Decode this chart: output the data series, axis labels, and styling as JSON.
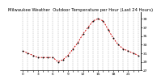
{
  "title": "Milwaukee Weather  Outdoor Temperature per Hour (Last 24 Hours)",
  "hours": [
    0,
    1,
    2,
    3,
    4,
    5,
    6,
    7,
    8,
    9,
    10,
    11,
    12,
    13,
    14,
    15,
    16,
    17,
    18,
    19,
    20,
    21,
    22,
    23
  ],
  "temps": [
    31.5,
    31.0,
    30.5,
    30.0,
    30.0,
    30.0,
    30.0,
    29.0,
    29.5,
    30.5,
    32.0,
    33.5,
    35.5,
    37.0,
    38.5,
    39.0,
    38.5,
    36.5,
    34.5,
    33.0,
    32.0,
    31.5,
    31.0,
    30.5
  ],
  "line_color": "#cc0000",
  "marker_color": "#000000",
  "bg_color": "#ffffff",
  "grid_color": "#888888",
  "ylim": [
    27.5,
    40.5
  ],
  "ytick_values": [
    39,
    37,
    35,
    33,
    31,
    29,
    27
  ],
  "title_fontsize": 3.8,
  "tick_fontsize": 3.2
}
